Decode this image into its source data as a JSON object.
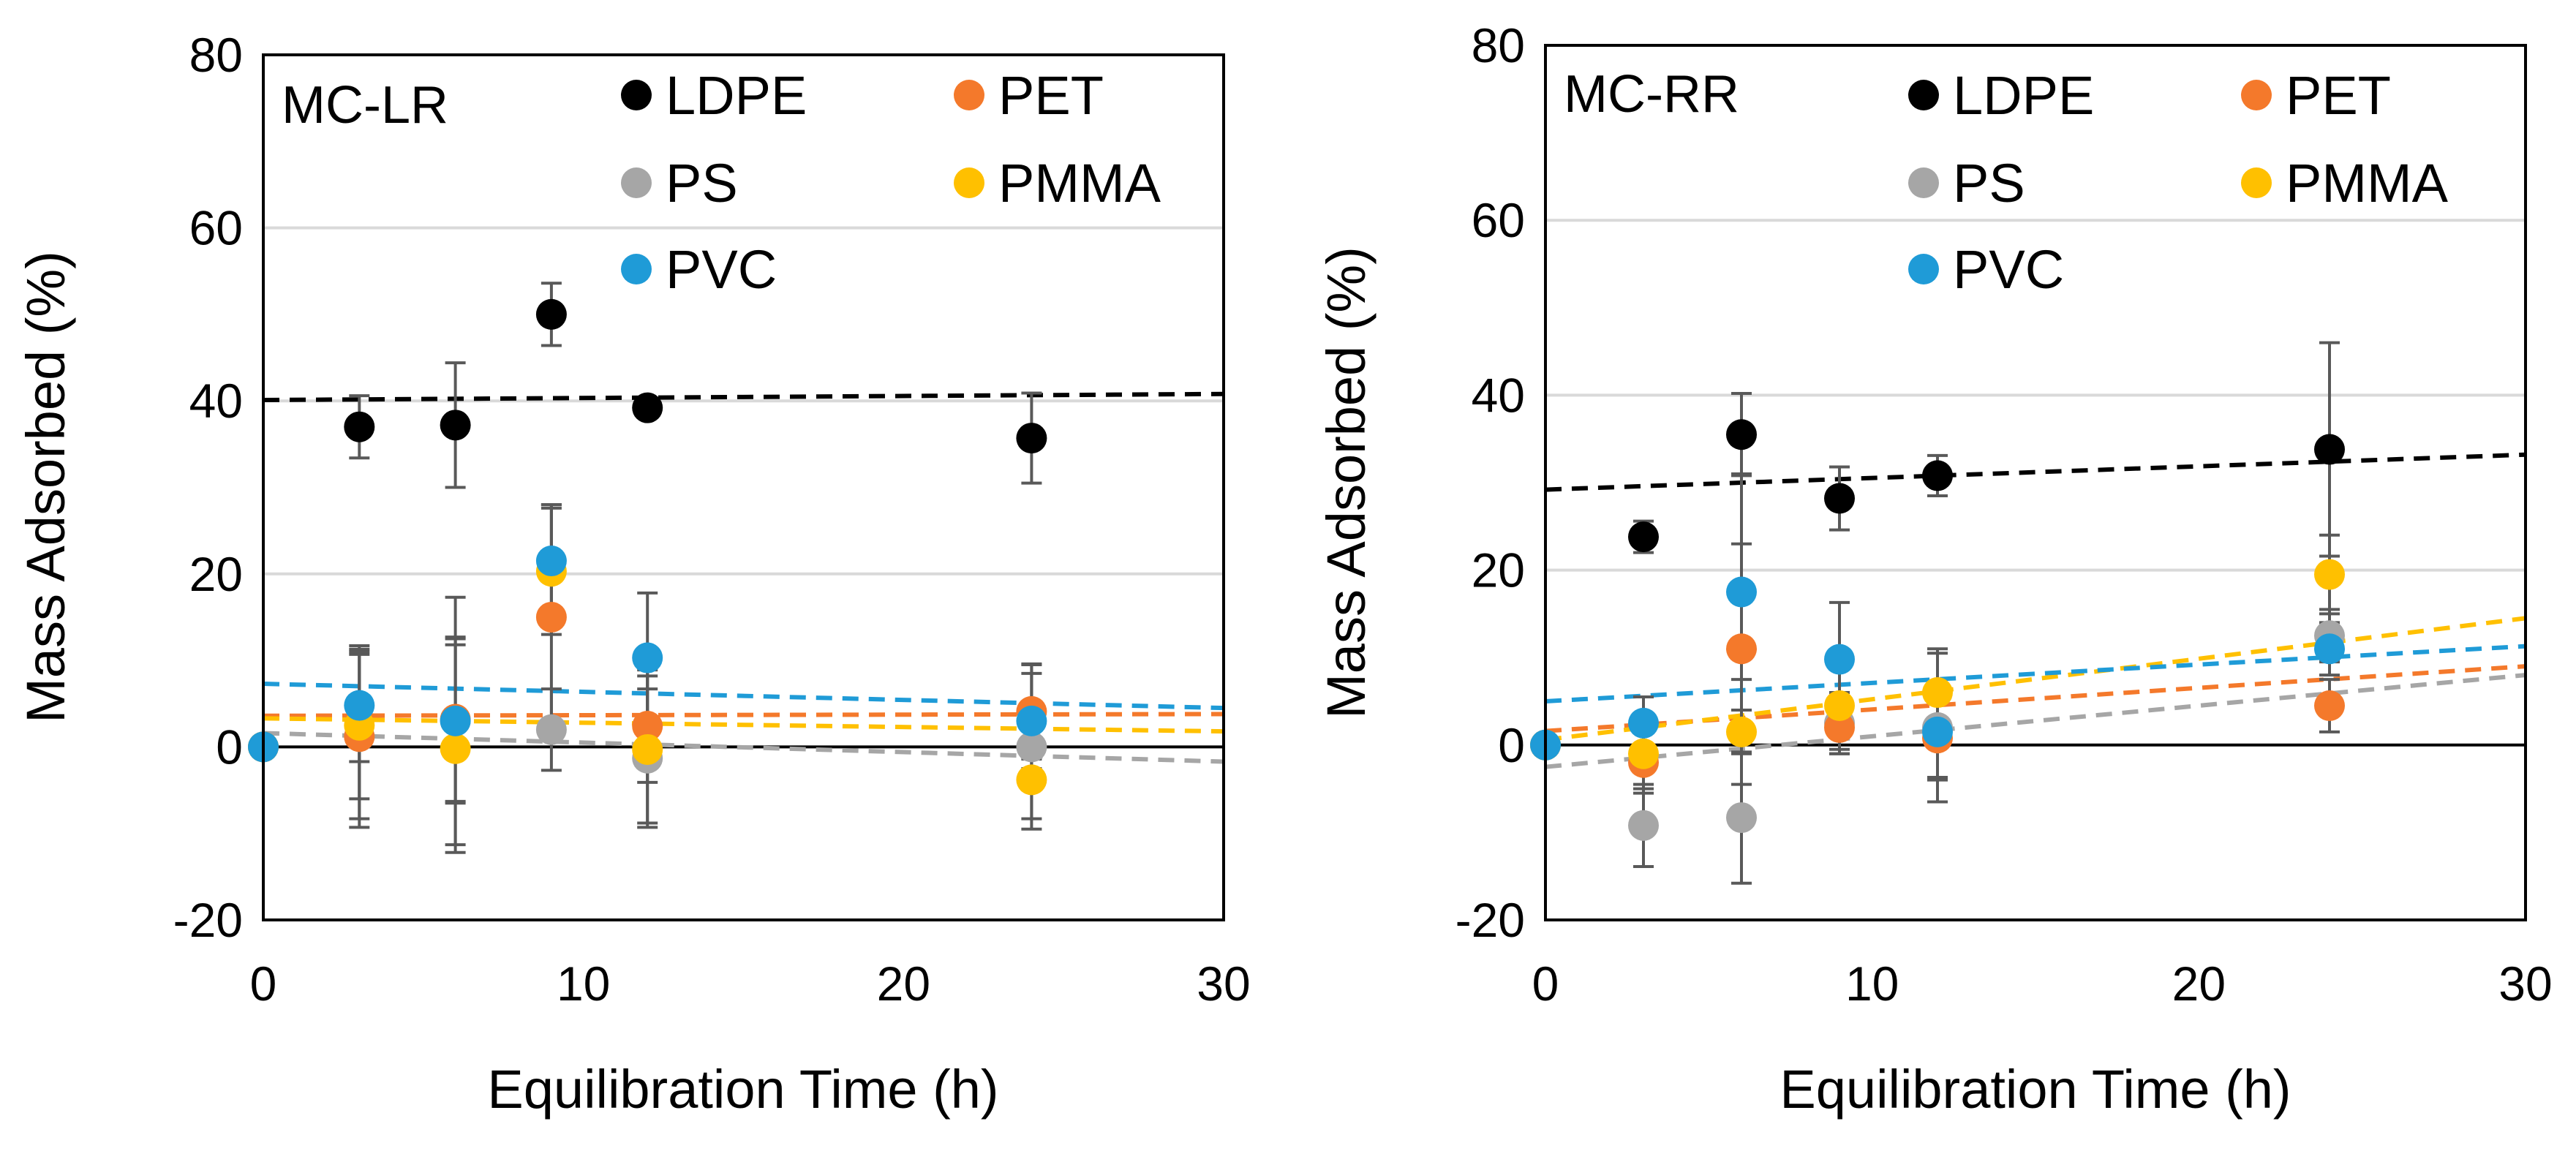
{
  "figure": {
    "background": "#ffffff",
    "text_color": "#000000"
  },
  "chart_data": [
    {
      "type": "scatter",
      "panel_label": "MC-LR",
      "xlabel": "Equilibration Time (h)",
      "ylabel": "Mass Adsorbed (%)",
      "xlim": [
        0,
        30
      ],
      "ylim": [
        -20,
        80
      ],
      "xticks": [
        0,
        10,
        20,
        30
      ],
      "yticks": [
        -20,
        0,
        20,
        40,
        60,
        80
      ],
      "grid": "horizontal",
      "zero_line": true,
      "legend_position": "top-right",
      "series": [
        {
          "name": "LDPE",
          "color": "#000000",
          "points": [
            {
              "x": 3,
              "y": 37,
              "err": 3.6
            },
            {
              "x": 6,
              "y": 37.2,
              "err": 7.2
            },
            {
              "x": 9,
              "y": 50,
              "err": 3.6
            },
            {
              "x": 12,
              "y": 39.2,
              "err": 0.8
            },
            {
              "x": 24,
              "y": 35.7,
              "err": 5.2
            }
          ],
          "trend": [
            {
              "x": 0,
              "y": 40.1
            },
            {
              "x": 30,
              "y": 40.8
            }
          ]
        },
        {
          "name": "PET",
          "color": "#f4792b",
          "points": [
            {
              "x": 0,
              "y": 0,
              "err": 0
            },
            {
              "x": 3,
              "y": 1.2,
              "err": 9.5
            },
            {
              "x": 6,
              "y": 3.2,
              "err": 9.5
            },
            {
              "x": 9,
              "y": 15,
              "err": 13
            },
            {
              "x": 12,
              "y": 2.4,
              "err": 6.5
            },
            {
              "x": 24,
              "y": 4.1,
              "err": 5.5
            }
          ],
          "trend": [
            {
              "x": 0,
              "y": 3.6
            },
            {
              "x": 30,
              "y": 3.8
            }
          ]
        },
        {
          "name": "PS",
          "color": "#a6a6a6",
          "points": [
            {
              "x": 0,
              "y": 0,
              "err": 0
            },
            {
              "x": 3,
              "y": 1.2,
              "err": 10.5
            },
            {
              "x": 6,
              "y": 3,
              "err": 14.3
            },
            {
              "x": 9,
              "y": 2,
              "err": 4.7
            },
            {
              "x": 12,
              "y": -1.3,
              "err": 8
            },
            {
              "x": 24,
              "y": 0,
              "err": 9.5
            }
          ],
          "trend": [
            {
              "x": 0,
              "y": 1.6
            },
            {
              "x": 30,
              "y": -1.7
            }
          ]
        },
        {
          "name": "PMMA",
          "color": "#ffc000",
          "points": [
            {
              "x": 0,
              "y": 0,
              "err": 0
            },
            {
              "x": 3,
              "y": 2.5,
              "err": 8.5
            },
            {
              "x": 6,
              "y": -0.2,
              "err": 12
            },
            {
              "x": 9,
              "y": 20.3,
              "err": 7.3
            },
            {
              "x": 12,
              "y": -0.3,
              "err": 8.5
            },
            {
              "x": 24,
              "y": -3.8,
              "err": 4.5
            }
          ],
          "trend": [
            {
              "x": 0,
              "y": 3.3
            },
            {
              "x": 30,
              "y": 1.8
            }
          ]
        },
        {
          "name": "PVC",
          "color": "#1f9bd7",
          "points": [
            {
              "x": 0,
              "y": 0,
              "err": 0
            },
            {
              "x": 3,
              "y": 4.8,
              "err": 6.5
            },
            {
              "x": 6,
              "y": 3,
              "err": 9.5
            },
            {
              "x": 9,
              "y": 21.5,
              "err": 6.5
            },
            {
              "x": 12,
              "y": 10.3,
              "err": 7.5
            },
            {
              "x": 24,
              "y": 3,
              "err": 5.5
            }
          ],
          "trend": [
            {
              "x": 0,
              "y": 7.3
            },
            {
              "x": 30,
              "y": 4.5
            }
          ]
        }
      ]
    },
    {
      "type": "scatter",
      "panel_label": "MC-RR",
      "xlabel": "Equilibration Time (h)",
      "ylabel": "Mass Adsorbed (%)",
      "xlim": [
        0,
        30
      ],
      "ylim": [
        -20,
        80
      ],
      "xticks": [
        0,
        10,
        20,
        30
      ],
      "yticks": [
        -20,
        0,
        20,
        40,
        60,
        80
      ],
      "grid": "horizontal",
      "zero_line": true,
      "legend_position": "top-right",
      "series": [
        {
          "name": "LDPE",
          "color": "#000000",
          "points": [
            {
              "x": 3,
              "y": 23.8,
              "err": 1.8
            },
            {
              "x": 6,
              "y": 35.5,
              "err": 4.7
            },
            {
              "x": 9,
              "y": 28.2,
              "err": 3.6
            },
            {
              "x": 12,
              "y": 30.8,
              "err": 2.3
            },
            {
              "x": 24,
              "y": 33.8,
              "err": 12.2
            }
          ],
          "trend": [
            {
              "x": 0,
              "y": 29.2
            },
            {
              "x": 30,
              "y": 33.2
            }
          ]
        },
        {
          "name": "PET",
          "color": "#f4792b",
          "points": [
            {
              "x": 0,
              "y": 0,
              "err": 0
            },
            {
              "x": 3,
              "y": -2,
              "err": 3.5
            },
            {
              "x": 6,
              "y": 11,
              "err": 12
            },
            {
              "x": 9,
              "y": 2,
              "err": 3
            },
            {
              "x": 12,
              "y": 0.8,
              "err": 4.5
            },
            {
              "x": 24,
              "y": 4.5,
              "err": 3
            }
          ],
          "trend": [
            {
              "x": 0,
              "y": 1.6
            },
            {
              "x": 30,
              "y": 9
            }
          ]
        },
        {
          "name": "PS",
          "color": "#a6a6a6",
          "points": [
            {
              "x": 0,
              "y": 0,
              "err": 0
            },
            {
              "x": 3,
              "y": -9.2,
              "err": 4.7
            },
            {
              "x": 6,
              "y": -8.3,
              "err": 7.5
            },
            {
              "x": 9,
              "y": 2.5,
              "err": 3.5
            },
            {
              "x": 12,
              "y": 2,
              "err": 8.5
            },
            {
              "x": 24,
              "y": 12.5,
              "err": 3
            }
          ],
          "trend": [
            {
              "x": 0,
              "y": -2.5
            },
            {
              "x": 30,
              "y": 8
            }
          ]
        },
        {
          "name": "PMMA",
          "color": "#ffc000",
          "points": [
            {
              "x": 0,
              "y": 0,
              "err": 0
            },
            {
              "x": 3,
              "y": -1,
              "err": 4
            },
            {
              "x": 6,
              "y": 1.5,
              "err": 6
            },
            {
              "x": 9,
              "y": 4.5,
              "err": 5
            },
            {
              "x": 12,
              "y": 6,
              "err": 5
            },
            {
              "x": 24,
              "y": 19.5,
              "err": 4.5
            }
          ],
          "trend": [
            {
              "x": 0,
              "y": 0.6
            },
            {
              "x": 30,
              "y": 14.5
            }
          ]
        },
        {
          "name": "PVC",
          "color": "#1f9bd7",
          "points": [
            {
              "x": 0,
              "y": 0,
              "err": 0
            },
            {
              "x": 3,
              "y": 2.5,
              "err": 3
            },
            {
              "x": 6,
              "y": 17.5,
              "err": 13.5
            },
            {
              "x": 9,
              "y": 9.8,
              "err": 6.5
            },
            {
              "x": 12,
              "y": 1.5,
              "err": 5.5
            },
            {
              "x": 24,
              "y": 11,
              "err": 3
            }
          ],
          "trend": [
            {
              "x": 0,
              "y": 5
            },
            {
              "x": 30,
              "y": 11.3
            }
          ]
        }
      ]
    }
  ]
}
